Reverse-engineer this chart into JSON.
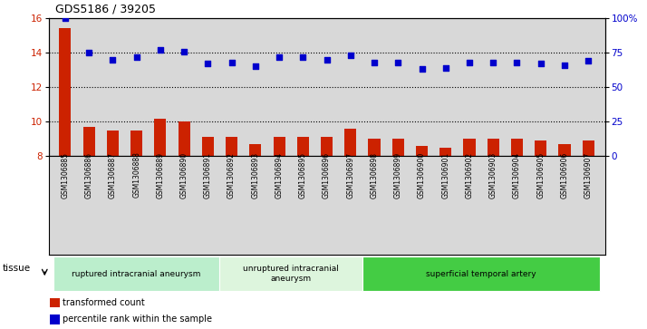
{
  "title": "GDS5186 / 39205",
  "samples": [
    "GSM1306885",
    "GSM1306886",
    "GSM1306887",
    "GSM1306888",
    "GSM1306889",
    "GSM1306890",
    "GSM1306891",
    "GSM1306892",
    "GSM1306893",
    "GSM1306894",
    "GSM1306895",
    "GSM1306896",
    "GSM1306897",
    "GSM1306898",
    "GSM1306899",
    "GSM1306900",
    "GSM1306901",
    "GSM1306902",
    "GSM1306903",
    "GSM1306904",
    "GSM1306905",
    "GSM1306906",
    "GSM1306907"
  ],
  "transformed_count": [
    15.4,
    9.7,
    9.5,
    9.5,
    10.15,
    10.0,
    9.1,
    9.1,
    8.7,
    9.1,
    9.1,
    9.1,
    9.6,
    9.0,
    9.0,
    8.6,
    8.5,
    9.0,
    9.0,
    9.0,
    8.9,
    8.7,
    8.9
  ],
  "percentile_rank": [
    100,
    75,
    70,
    72,
    77,
    76,
    67,
    68,
    65,
    72,
    72,
    70,
    73,
    68,
    68,
    63,
    64,
    68,
    68,
    68,
    67,
    66,
    69
  ],
  "bar_color": "#cc2200",
  "dot_color": "#0000cc",
  "groups": [
    {
      "label": "ruptured intracranial aneurysm",
      "start": 0,
      "end": 7,
      "color": "#bbeecc"
    },
    {
      "label": "unruptured intracranial\naneurysm",
      "start": 7,
      "end": 13,
      "color": "#ddf5dd"
    },
    {
      "label": "superficial temporal artery",
      "start": 13,
      "end": 23,
      "color": "#44cc44"
    }
  ],
  "ylim_left": [
    8,
    16
  ],
  "ylim_right": [
    0,
    100
  ],
  "yticks_left": [
    8,
    10,
    12,
    14,
    16
  ],
  "yticks_right": [
    0,
    25,
    50,
    75,
    100
  ],
  "ytick_labels_right": [
    "0",
    "25",
    "50",
    "75",
    "100%"
  ],
  "bg_color": "#d8d8d8",
  "grid_lines_at": [
    10,
    12,
    14
  ]
}
